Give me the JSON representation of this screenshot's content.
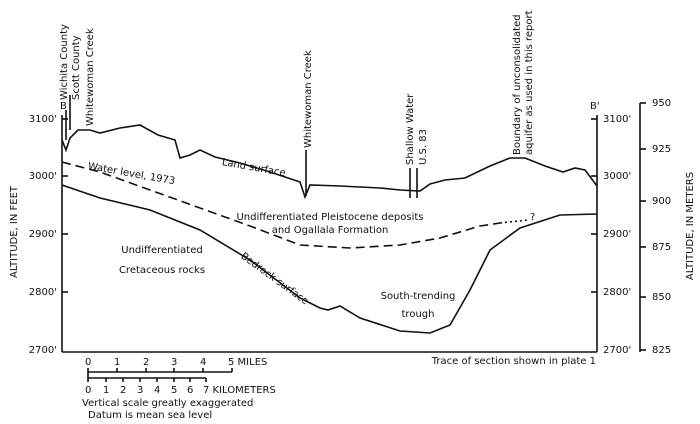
{
  "labels": {
    "b_left": "B",
    "b_right": "B'",
    "wichita": "Wichita County",
    "scott": "Scott County",
    "creek_left": "Whitewoman Creek",
    "creek_mid": "Whitewoman Creek",
    "shallow_water": "Shallow Water",
    "us83": "U.S. 83",
    "boundary": [
      "Boundary of unconsolidated",
      "aquifer as used in this report"
    ],
    "land_surface": "Land surface",
    "water_level": "Water level, 1973",
    "pleistocene": [
      "Undifferentiated Pleistocene deposits",
      "and Ogallala Formation"
    ],
    "bedrock": "Bedrock surface",
    "cretaceous": [
      "Undifferentiated",
      "Cretaceous rocks"
    ],
    "trough": [
      "South-trending",
      "trough"
    ],
    "question": "?",
    "trace": "Trace of section shown in plate 1"
  },
  "axes": {
    "left_title": "ALTITUDE, IN FEET",
    "right_title": "ALTITUDE, IN METERS",
    "feet_ticks": [
      "3100'",
      "3000'",
      "2900'",
      "2800'",
      "2700'"
    ],
    "meter_ticks": [
      "950",
      "925",
      "900",
      "875",
      "850",
      "825"
    ]
  },
  "scale": {
    "miles": [
      "0",
      "1",
      "2",
      "3",
      "4",
      "5 MILES"
    ],
    "km": [
      "0",
      "1",
      "2",
      "3",
      "4",
      "5",
      "6",
      "7 KILOMETERS"
    ],
    "notes": [
      "Vertical scale greatly exaggerated",
      "Datum is mean sea level"
    ]
  }
}
